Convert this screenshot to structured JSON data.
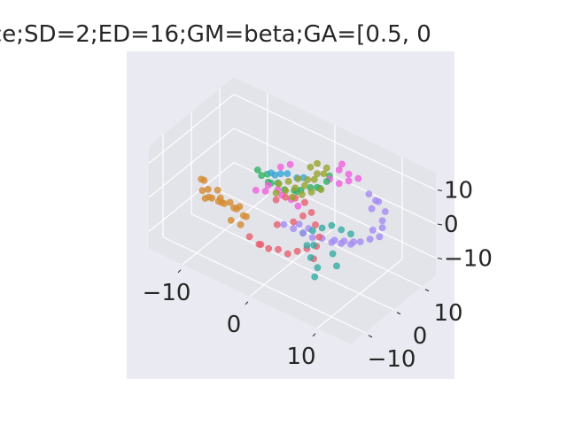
{
  "chart_data": {
    "type": "scatter",
    "projection": "3d",
    "title": "ce;SD=2;ED=16;GM=beta;GA=[0.5, 0",
    "xlabel": "",
    "ylabel": "",
    "zlabel": "",
    "xlim": [
      -15,
      15
    ],
    "ylim": [
      -15,
      15
    ],
    "zlim": [
      -15,
      15
    ],
    "x_ticks": [
      -10,
      0,
      10
    ],
    "x_tick_labels": [
      "−10",
      "0",
      "10"
    ],
    "y_ticks": [
      -10,
      0,
      10
    ],
    "y_tick_labels": [
      "−10",
      "0",
      "10"
    ],
    "z_ticks": [
      -10,
      0,
      10
    ],
    "z_tick_labels": [
      "−10",
      "0",
      "10"
    ],
    "grid": true,
    "background": "#eaeaf2",
    "pane_color": "#e3e3ea",
    "grid_color": "#ffffff",
    "marker_alpha": 0.8,
    "series": [
      {
        "color": "#e8606f",
        "points": [
          [
            -3,
            -8,
            -5
          ],
          [
            -2,
            -7,
            -7
          ],
          [
            -1,
            -6,
            -8
          ],
          [
            0,
            -5,
            -8
          ],
          [
            1,
            -4,
            -9
          ],
          [
            2,
            -3,
            -8
          ],
          [
            3,
            -2,
            -7
          ],
          [
            4,
            -1,
            -6
          ],
          [
            4,
            0,
            -4
          ],
          [
            3,
            1,
            -2
          ],
          [
            2,
            2,
            0
          ],
          [
            1,
            2,
            2
          ],
          [
            0,
            1,
            3
          ],
          [
            -1,
            0,
            3
          ],
          [
            -2,
            -1,
            2
          ],
          [
            -3,
            -4,
            -10
          ],
          [
            -1,
            -3,
            -3
          ],
          [
            1,
            -2,
            -1
          ],
          [
            2,
            -1,
            1
          ],
          [
            4,
            -2,
            -9
          ]
        ]
      },
      {
        "color": "#d48c32",
        "points": [
          [
            -11,
            -5,
            2
          ],
          [
            -10,
            -6,
            1
          ],
          [
            -9,
            -7,
            0
          ],
          [
            -8,
            -6,
            -1
          ],
          [
            -8,
            -5,
            -2
          ],
          [
            -7,
            -4,
            -3
          ],
          [
            -7,
            -3,
            -4
          ],
          [
            -6,
            -3,
            -5
          ],
          [
            -6,
            -2,
            -6
          ],
          [
            -10,
            -7,
            -1
          ],
          [
            -11,
            -6,
            3
          ],
          [
            -9,
            -4,
            -2
          ],
          [
            -8,
            -3,
            -3
          ],
          [
            -7,
            -2,
            -4
          ],
          [
            -10,
            -8,
            2
          ],
          [
            -9,
            -8,
            1
          ],
          [
            -7,
            -5,
            -6
          ],
          [
            -6,
            -4,
            -7
          ],
          [
            -8,
            -7,
            0
          ],
          [
            -9,
            -5,
            1
          ]
        ]
      },
      {
        "color": "#97a431",
        "points": [
          [
            -2,
            -1,
            4
          ],
          [
            -1,
            0,
            5
          ],
          [
            0,
            1,
            6
          ],
          [
            1,
            2,
            7
          ],
          [
            1,
            3,
            8
          ],
          [
            2,
            3,
            9
          ],
          [
            2,
            4,
            10
          ],
          [
            3,
            4,
            11
          ],
          [
            3,
            5,
            12
          ],
          [
            2,
            4,
            13
          ],
          [
            0,
            2,
            8
          ],
          [
            -1,
            1,
            7
          ],
          [
            1,
            1,
            5
          ],
          [
            2,
            2,
            6
          ],
          [
            0,
            0,
            4
          ],
          [
            -2,
            0,
            6
          ],
          [
            1,
            4,
            11
          ],
          [
            3,
            3,
            7
          ]
        ]
      },
      {
        "color": "#32b166",
        "points": [
          [
            -6,
            2,
            5
          ],
          [
            -5,
            1,
            5
          ],
          [
            -4,
            1,
            4
          ],
          [
            -3,
            2,
            4
          ],
          [
            -2,
            2,
            3
          ],
          [
            -1,
            3,
            3
          ],
          [
            0,
            3,
            4
          ],
          [
            1,
            4,
            5
          ],
          [
            2,
            4,
            6
          ],
          [
            3,
            5,
            8
          ],
          [
            -5,
            3,
            4
          ],
          [
            -4,
            2,
            3
          ],
          [
            -1,
            4,
            2
          ],
          [
            2,
            5,
            5
          ],
          [
            3,
            6,
            9
          ]
        ]
      },
      {
        "color": "#36ada4",
        "points": [
          [
            2,
            -1,
            -4
          ],
          [
            3,
            -2,
            -6
          ],
          [
            4,
            -3,
            -8
          ],
          [
            5,
            -3,
            -10
          ],
          [
            5,
            -4,
            -12
          ],
          [
            4,
            -2,
            -5
          ],
          [
            3,
            0,
            -3
          ],
          [
            4,
            1,
            -2
          ],
          [
            5,
            2,
            -1
          ],
          [
            6,
            3,
            -2
          ],
          [
            7,
            4,
            -3
          ],
          [
            6,
            0,
            -7
          ],
          [
            7,
            -1,
            -9
          ]
        ]
      },
      {
        "color": "#38a6d6",
        "points": [
          [
            -4,
            2,
            6
          ],
          [
            -3,
            3,
            6
          ],
          [
            -2,
            3,
            7
          ],
          [
            -1,
            4,
            6
          ],
          [
            0,
            4,
            7
          ],
          [
            -3,
            1,
            7
          ]
        ]
      },
      {
        "color": "#a48cf4",
        "points": [
          [
            0,
            -3,
            -2
          ],
          [
            1,
            -2,
            -3
          ],
          [
            2,
            -1,
            -4
          ],
          [
            3,
            0,
            -5
          ],
          [
            4,
            1,
            -5
          ],
          [
            5,
            2,
            -6
          ],
          [
            6,
            3,
            -6
          ],
          [
            7,
            4,
            -6
          ],
          [
            8,
            5,
            -5
          ],
          [
            9,
            6,
            -4
          ],
          [
            10,
            7,
            -3
          ],
          [
            10,
            8,
            -1
          ],
          [
            10,
            8,
            1
          ],
          [
            10,
            9,
            3
          ],
          [
            9,
            9,
            5
          ],
          [
            9,
            8,
            6
          ],
          [
            8,
            8,
            7
          ],
          [
            8,
            9,
            2
          ],
          [
            9,
            7,
            -2
          ],
          [
            7,
            5,
            -6
          ],
          [
            6,
            4,
            -6
          ],
          [
            5,
            3,
            -6
          ],
          [
            2,
            1,
            -4
          ],
          [
            1,
            0,
            -3
          ]
        ]
      },
      {
        "color": "#f061dd",
        "points": [
          [
            -4,
            1,
            3
          ],
          [
            -3,
            2,
            2
          ],
          [
            -2,
            1,
            2
          ],
          [
            -1,
            2,
            1
          ],
          [
            0,
            2,
            0
          ],
          [
            -3,
            3,
            8
          ],
          [
            -2,
            4,
            9
          ],
          [
            4,
            7,
            11
          ],
          [
            4,
            8,
            12
          ],
          [
            5,
            8,
            10
          ],
          [
            6,
            9,
            9
          ],
          [
            5,
            8,
            8
          ],
          [
            4,
            7,
            7
          ],
          [
            3,
            6,
            8
          ],
          [
            -5,
            -1,
            2
          ],
          [
            -4,
            0,
            2
          ]
        ]
      }
    ]
  }
}
